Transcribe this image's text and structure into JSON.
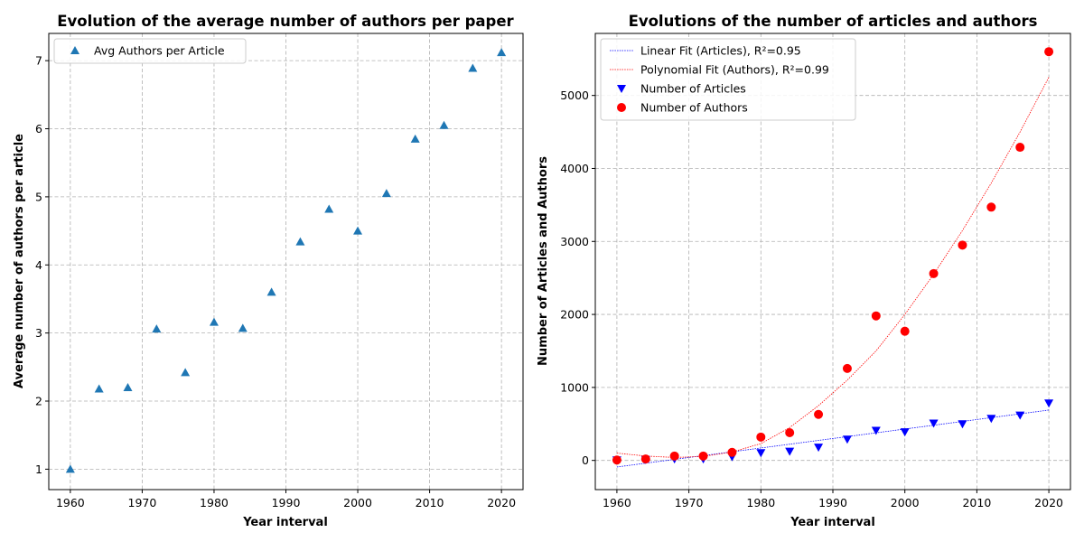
{
  "chart_data": [
    {
      "type": "scatter",
      "title": "Evolution of the average number of authors per paper",
      "xlabel": "Year interval",
      "ylabel": "Average number of authors per article",
      "xlim": [
        1957,
        2023
      ],
      "ylim": [
        0.7,
        7.4
      ],
      "xticks": [
        1960,
        1970,
        1980,
        1990,
        2000,
        2010,
        2020
      ],
      "yticks": [
        1,
        2,
        3,
        4,
        5,
        6,
        7
      ],
      "grid": true,
      "legend_position": "upper-left",
      "series": [
        {
          "name": "Avg Authors per Article",
          "marker": "triangle-up",
          "color": "#1f77b4",
          "x": [
            1960,
            1964,
            1968,
            1972,
            1976,
            1980,
            1984,
            1988,
            1992,
            1996,
            2000,
            2004,
            2008,
            2012,
            2016,
            2020
          ],
          "y": [
            1.0,
            2.18,
            2.2,
            3.06,
            2.42,
            3.16,
            3.07,
            3.6,
            4.34,
            4.82,
            4.5,
            5.05,
            5.85,
            6.05,
            6.89,
            7.12
          ]
        }
      ]
    },
    {
      "type": "scatter",
      "title": "Evolutions of the number of articles and authors",
      "xlabel": "Year interval",
      "ylabel": "Number of Articles and Authors",
      "xlim": [
        1957,
        2023
      ],
      "ylim": [
        -400,
        5850
      ],
      "xticks": [
        1960,
        1970,
        1980,
        1990,
        2000,
        2010,
        2020
      ],
      "yticks": [
        0,
        1000,
        2000,
        3000,
        4000,
        5000
      ],
      "grid": true,
      "legend_position": "upper-left",
      "fits": [
        {
          "name": "Linear Fit (Articles), R²=0.95",
          "color": "#0000ff",
          "kind": "linear",
          "x": [
            1960,
            2020
          ],
          "y": [
            -90,
            690
          ]
        },
        {
          "name": "Polynomial Fit (Authors), R²=0.99",
          "color": "#ff0000",
          "kind": "polynomial",
          "x": [
            1960,
            1964,
            1968,
            1972,
            1976,
            1980,
            1984,
            1988,
            1992,
            1996,
            2000,
            2004,
            2008,
            2012,
            2016,
            2020
          ],
          "y": [
            100,
            60,
            40,
            55,
            115,
            230,
            450,
            750,
            1100,
            1500,
            2000,
            2550,
            3150,
            3800,
            4500,
            5250
          ]
        }
      ],
      "series": [
        {
          "name": "Number of Articles",
          "marker": "triangle-down",
          "color": "#0000ff",
          "x": [
            1960,
            1964,
            1968,
            1972,
            1976,
            1980,
            1984,
            1988,
            1992,
            1996,
            2000,
            2004,
            2008,
            2012,
            2016,
            2020
          ],
          "y": [
            5,
            10,
            20,
            20,
            50,
            105,
            125,
            180,
            290,
            410,
            390,
            510,
            500,
            575,
            620,
            785
          ]
        },
        {
          "name": "Number of Authors",
          "marker": "circle",
          "color": "#ff0000",
          "x": [
            1960,
            1964,
            1968,
            1972,
            1976,
            1980,
            1984,
            1988,
            1992,
            1996,
            2000,
            2004,
            2008,
            2012,
            2016,
            2020
          ],
          "y": [
            5,
            20,
            60,
            60,
            110,
            320,
            380,
            630,
            1260,
            1980,
            1770,
            2560,
            2950,
            3470,
            4290,
            5600
          ]
        }
      ]
    }
  ]
}
